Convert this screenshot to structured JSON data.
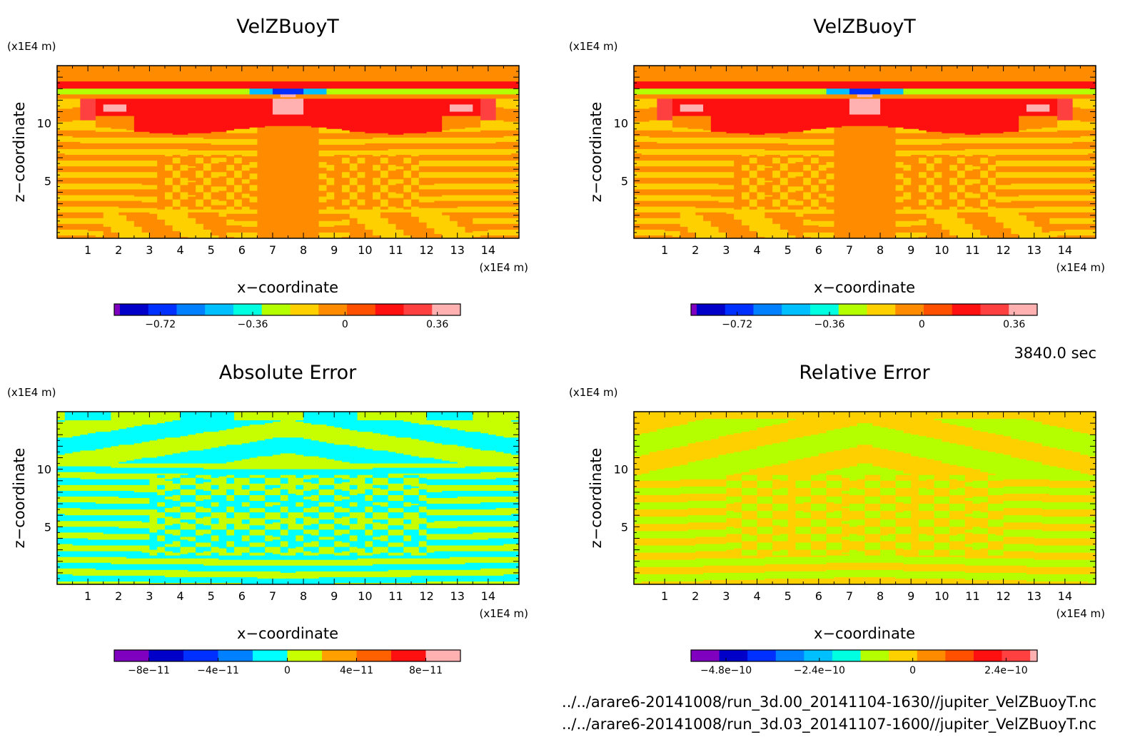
{
  "colors": {
    "palette13": [
      "#7f00bf",
      "#0000c8",
      "#0030ff",
      "#0080ff",
      "#00bfff",
      "#00ffe0",
      "#b4ff00",
      "#ffd000",
      "#ff8c00",
      "#ff5000",
      "#ff1010",
      "#ff4040",
      "#ffb0b0"
    ],
    "absolute_error": [
      "#7f00bf",
      "#0000c8",
      "#0030ff",
      "#0080ff",
      "#00ffff",
      "#c8ff00",
      "#ffa000",
      "#ff6000",
      "#ff1010",
      "#ffb0b0"
    ]
  },
  "info": {
    "time": "3840.0 sec",
    "file1": "../../arare6-20141008/run_3d.00_20141104-1630//jupiter_VelZBuoyT.nc",
    "file2": "../../arare6-20141008/run_3d.03_20141107-1600//jupiter_VelZBuoyT.nc"
  },
  "chart_data": [
    {
      "type": "heatmap",
      "title": "VelZBuoyT",
      "xlabel": "x−coordinate",
      "ylabel": "z−coordinate",
      "x_unit": "(x1E4 m)",
      "y_unit": "(x1E4 m)",
      "xlim": [
        0,
        15
      ],
      "ylim": [
        0,
        15
      ],
      "xticks": [
        1,
        2,
        3,
        4,
        5,
        6,
        7,
        8,
        9,
        10,
        11,
        12,
        13,
        14
      ],
      "yticks": [
        5,
        10
      ],
      "colorbar_labels": [
        "−0.72",
        "−0.36",
        "0",
        "0.36"
      ],
      "colorbar_label_values": [
        -0.72,
        -0.36,
        0,
        0.36
      ],
      "colorbar_range": [
        -0.9,
        0.45
      ],
      "pattern": "field"
    },
    {
      "type": "heatmap",
      "title": "VelZBuoyT",
      "xlabel": "x−coordinate",
      "ylabel": "z−coordinate",
      "x_unit": "(x1E4 m)",
      "y_unit": "(x1E4 m)",
      "xlim": [
        0,
        15
      ],
      "ylim": [
        0,
        15
      ],
      "xticks": [
        1,
        2,
        3,
        4,
        5,
        6,
        7,
        8,
        9,
        10,
        11,
        12,
        13,
        14
      ],
      "yticks": [
        5,
        10
      ],
      "colorbar_labels": [
        "−0.72",
        "−0.36",
        "0",
        "0.36"
      ],
      "colorbar_label_values": [
        -0.72,
        -0.36,
        0,
        0.36
      ],
      "colorbar_range": [
        -0.9,
        0.45
      ],
      "pattern": "field"
    },
    {
      "type": "heatmap",
      "title": "Absolute Error",
      "xlabel": "x−coordinate",
      "ylabel": "z−coordinate",
      "x_unit": "(x1E4 m)",
      "y_unit": "(x1E4 m)",
      "xlim": [
        0,
        15
      ],
      "ylim": [
        0,
        15
      ],
      "xticks": [
        1,
        2,
        3,
        4,
        5,
        6,
        7,
        8,
        9,
        10,
        11,
        12,
        13,
        14
      ],
      "yticks": [
        5,
        10
      ],
      "colorbar_labels": [
        "−8e−11",
        "−4e−11",
        "0",
        "4e−11",
        "8e−11"
      ],
      "colorbar_label_values": [
        -8e-11,
        -4e-11,
        0,
        4e-11,
        8e-11
      ],
      "colorbar_range": [
        -1e-10,
        1e-10
      ],
      "pattern": "abs"
    },
    {
      "type": "heatmap",
      "title": "Relative Error",
      "xlabel": "x−coordinate",
      "ylabel": "z−coordinate",
      "x_unit": "(x1E4 m)",
      "y_unit": "(x1E4 m)",
      "xlim": [
        0,
        15
      ],
      "ylim": [
        0,
        15
      ],
      "xticks": [
        1,
        2,
        3,
        4,
        5,
        6,
        7,
        8,
        9,
        10,
        11,
        12,
        13,
        14
      ],
      "yticks": [
        5,
        10
      ],
      "colorbar_labels": [
        "−4.8e−10",
        "−2.4e−10",
        "0",
        "2.4e−10"
      ],
      "colorbar_label_values": [
        -4.8e-10,
        -2.4e-10,
        0,
        2.4e-10
      ],
      "colorbar_range": [
        -5.7e-10,
        3.2e-10
      ],
      "pattern": "rel"
    }
  ]
}
